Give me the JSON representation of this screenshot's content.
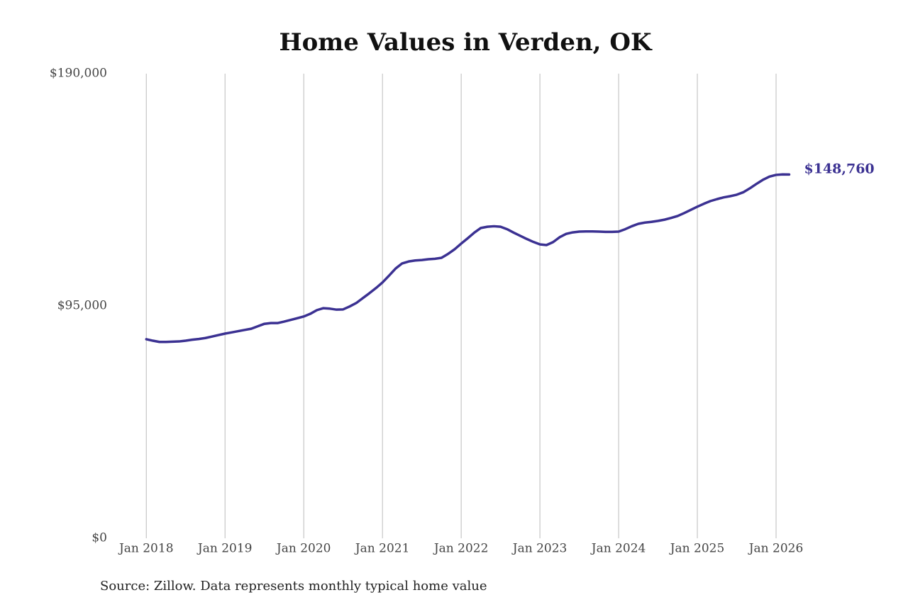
{
  "chart_data": {
    "type": "line",
    "title": "Home Values in Verden, OK",
    "source": "Source: Zillow. Data represents monthly typical home value",
    "x": [
      "2018-01",
      "2018-02",
      "2018-03",
      "2018-04",
      "2018-05",
      "2018-06",
      "2018-07",
      "2018-08",
      "2018-09",
      "2018-10",
      "2018-11",
      "2018-12",
      "2019-01",
      "2019-02",
      "2019-03",
      "2019-04",
      "2019-05",
      "2019-06",
      "2019-07",
      "2019-08",
      "2019-09",
      "2019-10",
      "2019-11",
      "2019-12",
      "2020-01",
      "2020-02",
      "2020-03",
      "2020-04",
      "2020-05",
      "2020-06",
      "2020-07",
      "2020-08",
      "2020-09",
      "2020-10",
      "2020-11",
      "2020-12",
      "2021-01",
      "2021-02",
      "2021-03",
      "2021-04",
      "2021-05",
      "2021-06",
      "2021-07",
      "2021-08",
      "2021-09",
      "2021-10",
      "2021-11",
      "2021-12",
      "2022-01",
      "2022-02",
      "2022-03",
      "2022-04",
      "2022-05",
      "2022-06",
      "2022-07",
      "2022-08",
      "2022-09",
      "2022-10",
      "2022-11",
      "2022-12",
      "2023-01",
      "2023-02",
      "2023-03",
      "2023-04",
      "2023-05",
      "2023-06",
      "2023-07",
      "2023-08",
      "2023-09",
      "2023-10",
      "2023-11",
      "2023-12",
      "2024-01",
      "2024-02",
      "2024-03",
      "2024-04",
      "2024-05",
      "2024-06",
      "2024-07",
      "2024-08",
      "2024-09",
      "2024-10",
      "2024-11",
      "2024-12",
      "2025-01",
      "2025-02",
      "2025-03",
      "2025-04",
      "2025-05",
      "2025-06",
      "2025-07",
      "2025-08",
      "2025-09",
      "2025-10",
      "2025-11",
      "2025-12",
      "2026-01",
      "2026-02",
      "2026-03"
    ],
    "series": [
      {
        "name": "Home value",
        "color": "#3b3192",
        "values": [
          81400,
          80800,
          80300,
          80300,
          80400,
          80500,
          80800,
          81200,
          81500,
          81900,
          82500,
          83100,
          83700,
          84200,
          84700,
          85200,
          85700,
          86700,
          87700,
          88000,
          88000,
          88600,
          89300,
          90000,
          90700,
          91800,
          93300,
          94100,
          93900,
          93500,
          93600,
          94800,
          96200,
          98200,
          100200,
          102300,
          104600,
          107400,
          110300,
          112400,
          113200,
          113600,
          113800,
          114100,
          114300,
          114700,
          116300,
          118200,
          120500,
          122700,
          125000,
          126900,
          127400,
          127600,
          127400,
          126400,
          125000,
          123700,
          122400,
          121200,
          120200,
          119900,
          121100,
          123100,
          124500,
          125100,
          125400,
          125500,
          125500,
          125400,
          125300,
          125300,
          125400,
          126400,
          127600,
          128600,
          129100,
          129400,
          129800,
          130300,
          131000,
          131800,
          133000,
          134300,
          135600,
          136800,
          137900,
          138700,
          139400,
          139900,
          140500,
          141500,
          143100,
          144900,
          146600,
          147900,
          148600,
          148800,
          148760
        ],
        "value_labels": [
          null,
          null,
          null,
          null,
          null,
          null,
          null,
          null,
          null,
          null,
          null,
          null,
          null,
          null,
          null,
          null,
          null,
          null,
          null,
          null,
          null,
          null,
          null,
          null,
          null,
          null,
          null,
          null,
          null,
          null,
          null,
          null,
          null,
          null,
          null,
          null,
          null,
          null,
          null,
          null,
          null,
          null,
          null,
          null,
          null,
          null,
          null,
          null,
          null,
          null,
          null,
          null,
          null,
          null,
          null,
          null,
          null,
          null,
          null,
          null,
          null,
          null,
          null,
          null,
          null,
          null,
          null,
          null,
          null,
          null,
          null,
          null,
          null,
          null,
          null,
          null,
          null,
          null,
          null,
          null,
          null,
          null,
          null,
          null,
          null,
          null,
          null,
          null,
          null,
          null,
          null,
          null,
          null,
          null,
          null,
          null,
          null,
          null,
          "$148,760"
        ]
      }
    ],
    "xlim": [
      "2017-08",
      "2026-05"
    ],
    "xticks": [
      {
        "value": "2018-01",
        "label": "Jan 2018"
      },
      {
        "value": "2019-01",
        "label": "Jan 2019"
      },
      {
        "value": "2020-01",
        "label": "Jan 2020"
      },
      {
        "value": "2021-01",
        "label": "Jan 2021"
      },
      {
        "value": "2022-01",
        "label": "Jan 2022"
      },
      {
        "value": "2023-01",
        "label": "Jan 2023"
      },
      {
        "value": "2024-01",
        "label": "Jan 2024"
      },
      {
        "value": "2025-01",
        "label": "Jan 2025"
      },
      {
        "value": "2026-01",
        "label": "Jan 2026"
      }
    ],
    "ylim": [
      0,
      190000
    ],
    "yticks": [
      {
        "value": 0,
        "label": "$0"
      },
      {
        "value": 95000,
        "label": "$95,000"
      },
      {
        "value": 190000,
        "label": "$190,000"
      }
    ],
    "grid": "x"
  }
}
